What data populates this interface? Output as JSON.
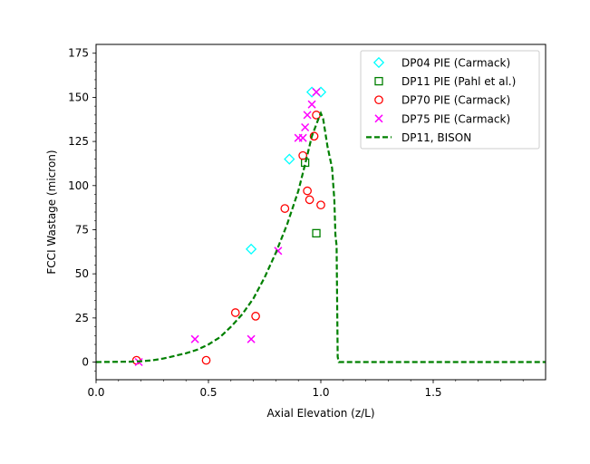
{
  "chart_data": {
    "type": "scatter",
    "xlabel": "Axial Elevation (z/L)",
    "ylabel": "FCCI Wastage (micron)",
    "xlim": [
      0.0,
      2.0
    ],
    "ylim": [
      -10,
      180
    ],
    "xticks": [
      0.0,
      0.5,
      1.0,
      1.5
    ],
    "xtick_labels": [
      "0.0",
      "0.5",
      "1.0",
      "1.5"
    ],
    "yticks": [
      0,
      25,
      50,
      75,
      100,
      125,
      150,
      175
    ],
    "ytick_labels": [
      "0",
      "25",
      "50",
      "75",
      "100",
      "125",
      "150",
      "175"
    ],
    "grid": false,
    "legend_position": "top-right",
    "series": [
      {
        "name": "DP04 PIE (Carmack)",
        "marker": "diamond",
        "color": "#00ffff",
        "points": [
          [
            0.69,
            64
          ],
          [
            0.86,
            115
          ],
          [
            0.96,
            153
          ],
          [
            1.0,
            153
          ]
        ]
      },
      {
        "name": "DP11 PIE (Pahl et al.)",
        "marker": "square",
        "color": "#008000",
        "points": [
          [
            0.93,
            113
          ],
          [
            0.98,
            73
          ]
        ]
      },
      {
        "name": "DP70 PIE (Carmack)",
        "marker": "circle",
        "color": "#ff0000",
        "points": [
          [
            0.18,
            1
          ],
          [
            0.49,
            1
          ],
          [
            0.62,
            28
          ],
          [
            0.71,
            26
          ],
          [
            0.84,
            87
          ],
          [
            0.92,
            117
          ],
          [
            0.94,
            97
          ],
          [
            0.95,
            92
          ],
          [
            0.97,
            128
          ],
          [
            0.98,
            140
          ],
          [
            1.0,
            89
          ]
        ]
      },
      {
        "name": "DP75 PIE (Carmack)",
        "marker": "x",
        "color": "#ff00ff",
        "points": [
          [
            0.19,
            0
          ],
          [
            0.44,
            13
          ],
          [
            0.69,
            13
          ],
          [
            0.81,
            63
          ],
          [
            0.9,
            127
          ],
          [
            0.92,
            127
          ],
          [
            0.93,
            133
          ],
          [
            0.94,
            140
          ],
          [
            0.96,
            146
          ],
          [
            0.98,
            153
          ]
        ]
      },
      {
        "name": "DP11, BISON",
        "marker": "dashed-line",
        "color": "#008000",
        "points": [
          [
            0.0,
            0
          ],
          [
            0.15,
            0.2
          ],
          [
            0.2,
            0.5
          ],
          [
            0.25,
            1
          ],
          [
            0.3,
            2
          ],
          [
            0.35,
            3.5
          ],
          [
            0.4,
            5
          ],
          [
            0.45,
            7
          ],
          [
            0.5,
            10
          ],
          [
            0.55,
            14
          ],
          [
            0.6,
            20
          ],
          [
            0.65,
            27
          ],
          [
            0.7,
            36
          ],
          [
            0.75,
            48
          ],
          [
            0.8,
            62
          ],
          [
            0.85,
            78
          ],
          [
            0.9,
            97
          ],
          [
            0.93,
            112
          ],
          [
            0.96,
            128
          ],
          [
            0.99,
            138
          ],
          [
            1.0,
            141
          ],
          [
            1.01,
            138
          ],
          [
            1.03,
            122
          ],
          [
            1.05,
            110
          ],
          [
            1.06,
            92
          ],
          [
            1.065,
            72
          ],
          [
            1.07,
            66
          ],
          [
            1.075,
            3
          ],
          [
            1.08,
            0
          ],
          [
            2.0,
            0
          ]
        ]
      }
    ]
  }
}
